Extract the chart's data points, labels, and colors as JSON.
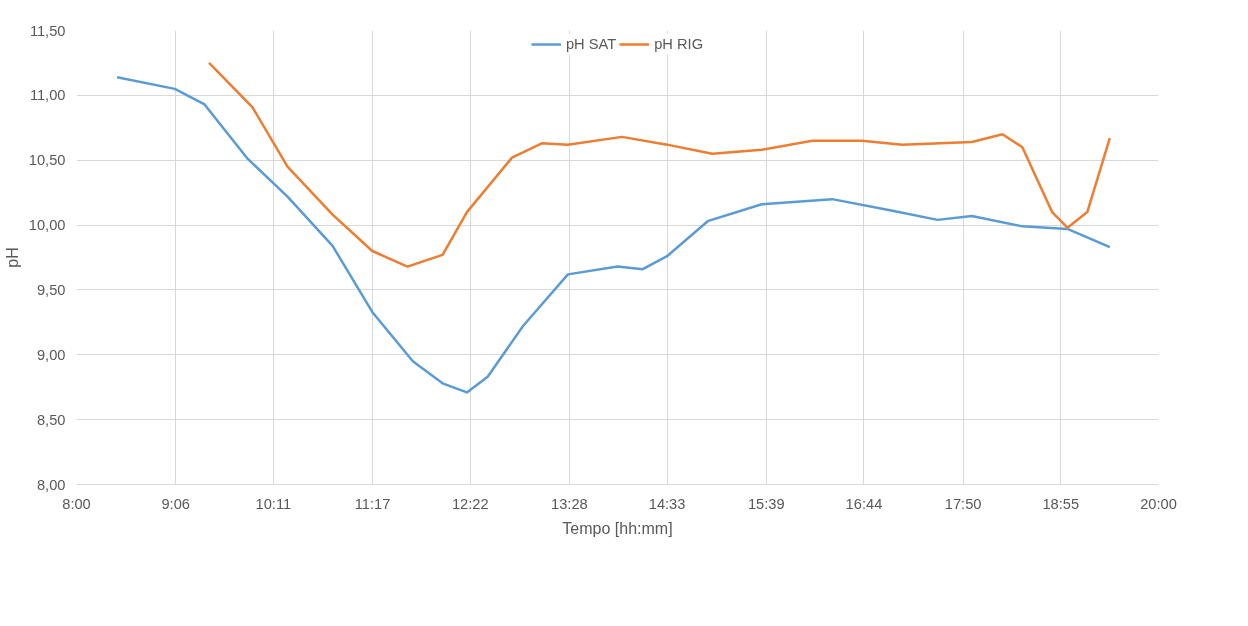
{
  "chart_data": {
    "type": "line",
    "xlabel": "Tempo [hh:mm]",
    "ylabel": "pH",
    "grid": true,
    "legend": "top",
    "line_style": "solid",
    "marker": "none",
    "xlim": [
      8,
      20
    ],
    "ylim": [
      8,
      11.5
    ],
    "xticks": [
      {
        "value": 8,
        "label": "8:00"
      },
      {
        "value": 9.1,
        "label": "9:06"
      },
      {
        "value": 10.1833,
        "label": "10:11"
      },
      {
        "value": 11.2833,
        "label": "11:17"
      },
      {
        "value": 12.3667,
        "label": "12:22"
      },
      {
        "value": 13.4667,
        "label": "13:28"
      },
      {
        "value": 14.55,
        "label": "14:33"
      },
      {
        "value": 15.65,
        "label": "15:39"
      },
      {
        "value": 16.7333,
        "label": "16:44"
      },
      {
        "value": 17.8333,
        "label": "17:50"
      },
      {
        "value": 18.9167,
        "label": "18:55"
      },
      {
        "value": 20,
        "label": "20:00"
      }
    ],
    "yticks": [
      {
        "value": 8,
        "label": "8,00"
      },
      {
        "value": 8.5,
        "label": "8,50"
      },
      {
        "value": 9,
        "label": "9,00"
      },
      {
        "value": 9.5,
        "label": "9,50"
      },
      {
        "value": 10,
        "label": "10,00"
      },
      {
        "value": 10.5,
        "label": "10,50"
      },
      {
        "value": 11,
        "label": "11,00"
      },
      {
        "value": 11.5,
        "label": "11,50"
      }
    ],
    "series": [
      {
        "name": "pH SAT",
        "color": "#5b9bd5",
        "x": [
          8.45,
          9.09,
          9.42,
          9.9,
          10.34,
          10.84,
          11.28,
          11.73,
          12.06,
          12.33,
          12.56,
          12.95,
          13.45,
          14.0,
          14.28,
          14.55,
          15.0,
          15.6,
          16.38,
          17.05,
          17.55,
          17.93,
          18.49,
          18.99,
          19.46
        ],
        "values": [
          11.14,
          11.05,
          10.93,
          10.51,
          10.22,
          9.84,
          9.33,
          8.95,
          8.78,
          8.71,
          8.83,
          9.22,
          9.62,
          9.68,
          9.66,
          9.76,
          10.03,
          10.16,
          10.2,
          10.11,
          10.04,
          10.07,
          9.99,
          9.97,
          9.83
        ]
      },
      {
        "name": "pH RIG",
        "color": "#ed7d31",
        "x": [
          9.47,
          9.95,
          10.34,
          10.84,
          11.28,
          11.67,
          12.06,
          12.33,
          12.83,
          13.16,
          13.45,
          14.05,
          14.55,
          15.05,
          15.6,
          16.16,
          16.71,
          17.16,
          17.93,
          18.27,
          18.49,
          18.82,
          18.99,
          19.21,
          19.46
        ],
        "values": [
          11.25,
          10.91,
          10.45,
          10.08,
          9.8,
          9.68,
          9.77,
          10.1,
          10.52,
          10.63,
          10.62,
          10.68,
          10.62,
          10.55,
          10.58,
          10.65,
          10.65,
          10.62,
          10.64,
          10.7,
          10.6,
          10.1,
          9.98,
          10.1,
          10.67
        ]
      }
    ]
  }
}
